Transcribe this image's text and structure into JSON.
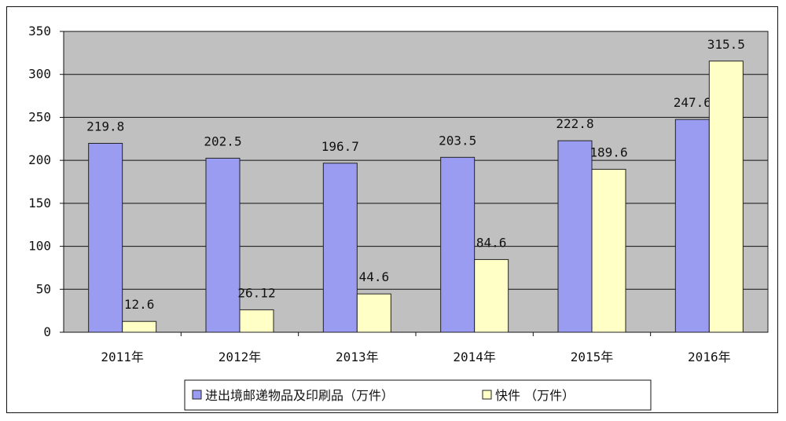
{
  "chart_data": {
    "type": "bar",
    "title": "",
    "xlabel": "",
    "ylabel": "",
    "categories": [
      "2011年",
      "2012年",
      "2013年",
      "2014年",
      "2015年",
      "2016年"
    ],
    "series": [
      {
        "name": "进出境邮递物品及印刷品（万件）",
        "values": [
          219.8,
          202.5,
          196.7,
          203.5,
          222.8,
          247.6
        ],
        "labels": [
          "219.8",
          "202.5",
          "196.7",
          "203.5",
          "222.8",
          "247.6"
        ],
        "color": "#9a9cf2"
      },
      {
        "name": "快件 （万件）",
        "values": [
          12.6,
          26.12,
          44.6,
          84.6,
          189.6,
          315.5
        ],
        "labels": [
          "12.6",
          "26.12",
          "44.6",
          "84.6",
          "189.6",
          "315.5"
        ],
        "color": "#ffffc6"
      }
    ],
    "ylim": [
      0,
      350
    ],
    "yticks": [
      0,
      50,
      100,
      150,
      200,
      250,
      300,
      350
    ],
    "grid": true,
    "plot_background": "#c0c0c0",
    "legend_position": "bottom"
  }
}
